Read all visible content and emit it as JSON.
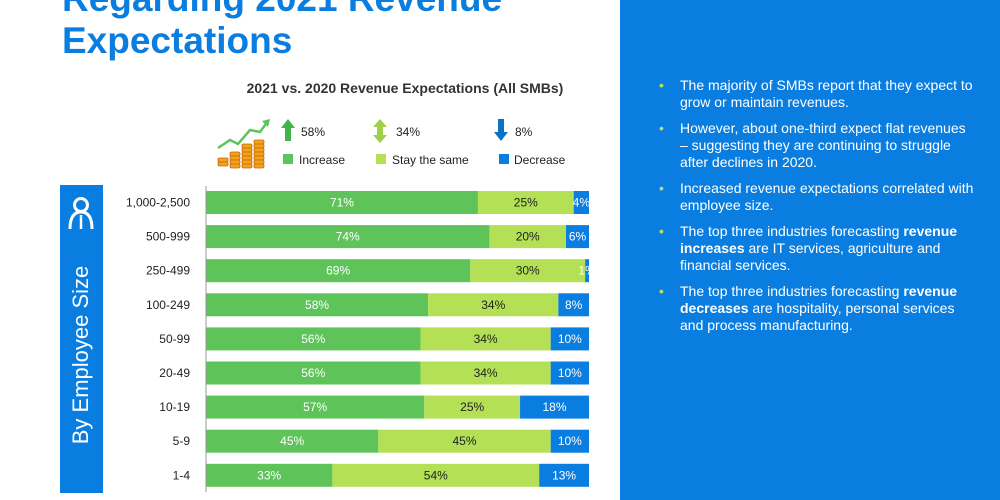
{
  "page": {
    "title_line1": "Regarding 2021 Revenue",
    "title_line2": "Expectations",
    "side_label": "By Employee Size",
    "accent_blue": "#0a7ee0"
  },
  "legend": {
    "icon": "revenue-growth-coins-icon",
    "items": [
      {
        "pct": "58%",
        "label": "Increase",
        "color": "#5ec45a",
        "arrow": "up"
      },
      {
        "pct": "34%",
        "label": "Stay the same",
        "color": "#b3e055",
        "arrow": "both"
      },
      {
        "pct": "8%",
        "label": "Decrease",
        "color": "#0a7ee0",
        "arrow": "down"
      }
    ]
  },
  "chart_data": {
    "type": "bar",
    "orientation": "horizontal",
    "stacked": true,
    "title": "2021 vs. 2020 Revenue Expectations (All SMBs)",
    "categories": [
      "1,000-2,500",
      "500-999",
      "250-499",
      "100-249",
      "50-99",
      "20-49",
      "10-19",
      "5-9",
      "1-4"
    ],
    "series": [
      {
        "name": "Increase",
        "color": "#5ec45a",
        "values": [
          71,
          74,
          69,
          58,
          56,
          56,
          57,
          45,
          33
        ]
      },
      {
        "name": "Stay the same",
        "color": "#b3e055",
        "values": [
          25,
          20,
          30,
          34,
          34,
          34,
          25,
          45,
          54
        ]
      },
      {
        "name": "Decrease",
        "color": "#0a7ee0",
        "values": [
          4,
          6,
          1,
          8,
          10,
          10,
          18,
          10,
          13
        ]
      }
    ],
    "xlim": [
      0,
      100
    ],
    "grid": false
  },
  "bullets": [
    {
      "pre": "The majority of SMBs report that they expect to grow or maintain revenues.",
      "bold": "",
      "post": ""
    },
    {
      "pre": "However, about one-third expect flat revenues – suggesting they are continuing to struggle after declines in 2020.",
      "bold": "",
      "post": ""
    },
    {
      "pre": "Increased revenue expectations correlated with employee size.",
      "bold": "",
      "post": ""
    },
    {
      "pre": "The top three industries forecasting ",
      "bold": "revenue increases",
      "post": " are IT services, agriculture and financial services."
    },
    {
      "pre": "The top three industries forecasting ",
      "bold": "revenue decreases",
      "post": " are hospitality, personal services and process manufacturing."
    }
  ],
  "bullet_marker": "•"
}
